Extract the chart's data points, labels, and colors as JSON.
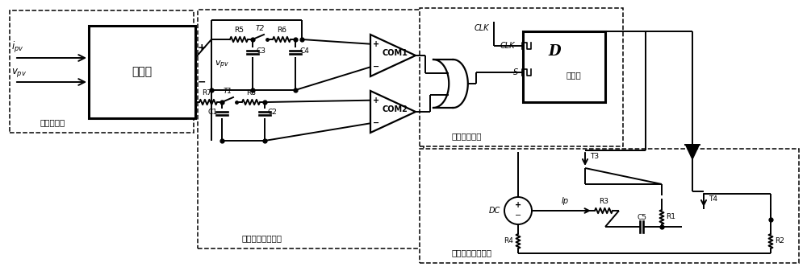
{
  "bg": "#ffffff",
  "fw": 10.0,
  "fh": 3.37,
  "dpi": 100,
  "lw": 1.4,
  "dlw": 1.1,
  "labels": {
    "multiplier": "乘法器",
    "mult_ckt": "乘法器电路",
    "sample": "采样保持比较电路",
    "logic": "逻辑判断电路",
    "amplitude": "幅値增减控制电路",
    "latch": "锁存器",
    "D": "D",
    "CLK": "CLK",
    "S": "S",
    "COM1": "COM1",
    "COM2": "COM2",
    "ipv": "$i_{pv}$",
    "vpv": "$v_{pv}$",
    "R1": "R1",
    "R2": "R2",
    "R3": "R3",
    "R4": "R4",
    "R5": "R5",
    "R6": "R6",
    "R7": "R7",
    "R8": "R8",
    "C1": "C1",
    "C2": "C2",
    "C3": "C3",
    "C4": "C4",
    "C5": "C5",
    "T1": "T1",
    "T2": "T2",
    "T3": "T3",
    "T4": "T4",
    "DC": "DC",
    "Ip": "Ip"
  }
}
